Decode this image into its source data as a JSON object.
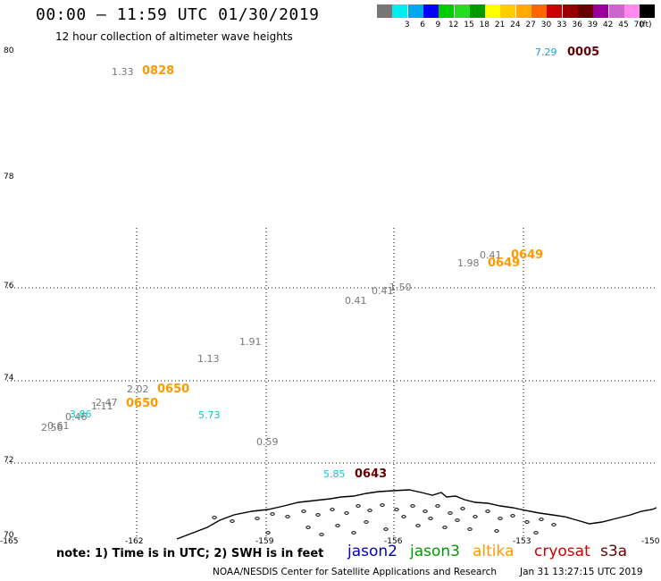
{
  "header": {
    "title": "00:00 – 11:59 UTC 01/30/2019",
    "subtitle": "12 hour collection of altimeter wave heights"
  },
  "legend": {
    "unit": "(ft)",
    "bins": [
      {
        "label": "",
        "color": "#777777"
      },
      {
        "label": "3",
        "color": "#00eeee"
      },
      {
        "label": "6",
        "color": "#00a8ee"
      },
      {
        "label": "9",
        "color": "#0000ff"
      },
      {
        "label": "12",
        "color": "#00cc00"
      },
      {
        "label": "15",
        "color": "#22dd22"
      },
      {
        "label": "18",
        "color": "#009900"
      },
      {
        "label": "21",
        "color": "#ffff00"
      },
      {
        "label": "24",
        "color": "#ffcc00"
      },
      {
        "label": "27",
        "color": "#ffaa00"
      },
      {
        "label": "30",
        "color": "#ff6600"
      },
      {
        "label": "33",
        "color": "#cc0000"
      },
      {
        "label": "36",
        "color": "#990000"
      },
      {
        "label": "39",
        "color": "#660000"
      },
      {
        "label": "42",
        "color": "#990099"
      },
      {
        "label": "45",
        "color": "#cc66cc"
      },
      {
        "label": "70",
        "color": "#ff88ee"
      },
      {
        "label": "",
        "color": "#000000"
      }
    ]
  },
  "axes": {
    "lat_labels": [
      "80",
      "78",
      "76",
      "74",
      "72",
      "70"
    ],
    "lon_labels": [
      "-165",
      "-162",
      "-159",
      "-156",
      "-153",
      "-150"
    ]
  },
  "observations": [
    {
      "text": "1.33",
      "color": "#777777",
      "kind": "swh"
    },
    {
      "text": "0828",
      "color": "#ff9900",
      "kind": "time"
    },
    {
      "text": "7.29",
      "color": "#2299dd",
      "kind": "swh"
    },
    {
      "text": "0005",
      "color": "#660000",
      "kind": "time"
    },
    {
      "text": "0.41",
      "color": "#777777",
      "kind": "swh"
    },
    {
      "text": "0649",
      "color": "#ff9900",
      "kind": "time"
    },
    {
      "text": "1.98",
      "color": "#777777",
      "kind": "swh"
    },
    {
      "text": "0649",
      "color": "#ff9900",
      "kind": "time"
    },
    {
      "text": "1.50",
      "color": "#777777",
      "kind": "swh"
    },
    {
      "text": "0.41",
      "color": "#777777",
      "kind": "swh"
    },
    {
      "text": "0.41",
      "color": "#777777",
      "kind": "swh"
    },
    {
      "text": "1.91",
      "color": "#777777",
      "kind": "swh"
    },
    {
      "text": "1.13",
      "color": "#777777",
      "kind": "swh"
    },
    {
      "text": "2.02",
      "color": "#777777",
      "kind": "swh"
    },
    {
      "text": "0650",
      "color": "#ff9900",
      "kind": "time"
    },
    {
      "text": "2.47",
      "color": "#777777",
      "kind": "swh"
    },
    {
      "text": "1.11",
      "color": "#777777",
      "kind": "swh"
    },
    {
      "text": "0650",
      "color": "#ff9900",
      "kind": "time"
    },
    {
      "text": "3.86",
      "color": "#00cccc",
      "kind": "swh"
    },
    {
      "text": "0.46",
      "color": "#777777",
      "kind": "swh"
    },
    {
      "text": "0.61",
      "color": "#777777",
      "kind": "swh"
    },
    {
      "text": "2.56",
      "color": "#777777",
      "kind": "swh"
    },
    {
      "text": "5.73",
      "color": "#00cccc",
      "kind": "swh"
    },
    {
      "text": "0.59",
      "color": "#777777",
      "kind": "swh"
    },
    {
      "text": "5.85",
      "color": "#00cccc",
      "kind": "swh"
    },
    {
      "text": "0643",
      "color": "#660000",
      "kind": "time"
    }
  ],
  "footer": {
    "note": "note:  1) Time is in UTC;  2) SWH is in feet",
    "satellites": [
      {
        "name": "jason2",
        "color": "#0000cc"
      },
      {
        "name": "jason3",
        "color": "#009900"
      },
      {
        "name": "altika",
        "color": "#ff9900"
      },
      {
        "name": "cryosat",
        "color": "#cc0000"
      },
      {
        "name": "s3a",
        "color": "#660000"
      }
    ],
    "credit": "NOAA/NESDIS Center for Satellite Applications and Research",
    "timestamp": "Jan 31 13:27:15 UTC 2019"
  }
}
